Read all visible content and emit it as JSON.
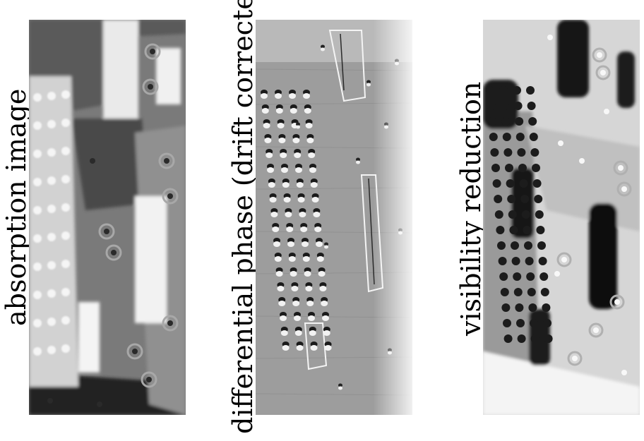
{
  "panels": [
    {
      "id": "absorption",
      "label": "absorption image"
    },
    {
      "id": "differential-phase",
      "label": "differential phase (drift corrected)"
    },
    {
      "id": "visibility-reduction",
      "label": "visibility reduction"
    }
  ],
  "colors": {
    "background": "#ffffff",
    "label_text": "#000000",
    "absorption_base": "#7a7a7a",
    "phase_base": "#9d9d9d",
    "visibility_base": "#d6d6d6"
  }
}
